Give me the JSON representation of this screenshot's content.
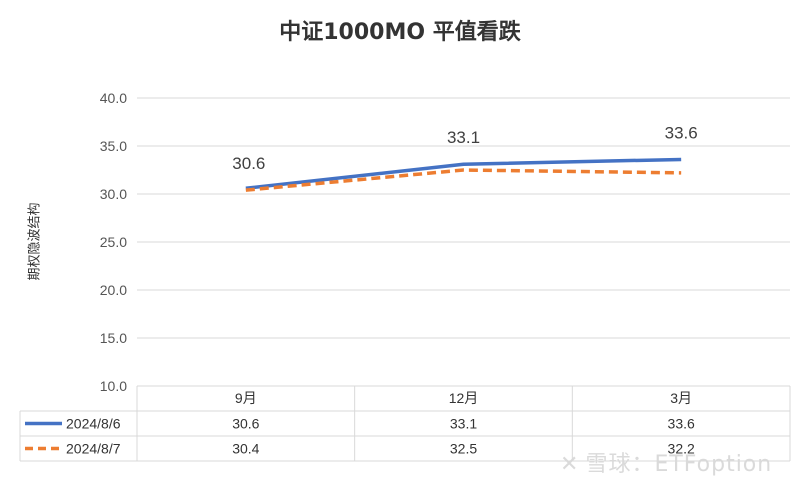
{
  "chart_data": {
    "type": "line",
    "title": "中证1000MO 平值看跌",
    "ylabel": "期权隐波结构",
    "xlabel": "",
    "categories": [
      "9月",
      "12月",
      "3月"
    ],
    "ylim": [
      10.0,
      40.0
    ],
    "yticks": [
      "10.0",
      "15.0",
      "20.0",
      "25.0",
      "30.0",
      "35.0",
      "40.0"
    ],
    "ytick_values": [
      10,
      15,
      20,
      25,
      30,
      35,
      40
    ],
    "series": [
      {
        "name": "2024/8/6",
        "values": [
          30.6,
          33.1,
          33.6
        ],
        "labels": [
          "30.6",
          "33.1",
          "33.6"
        ],
        "color": "#4472C4",
        "style": "solid",
        "show_data_labels": true
      },
      {
        "name": "2024/8/7",
        "values": [
          30.4,
          32.5,
          32.2
        ],
        "labels": [
          "30.4",
          "32.5",
          "32.2"
        ],
        "color": "#ED7D31",
        "style": "dashed",
        "show_data_labels": false
      }
    ],
    "grid": true,
    "data_table": true
  },
  "watermark": {
    "icon": "snowball-logo-icon",
    "text": "雪球：ETFoption"
  }
}
